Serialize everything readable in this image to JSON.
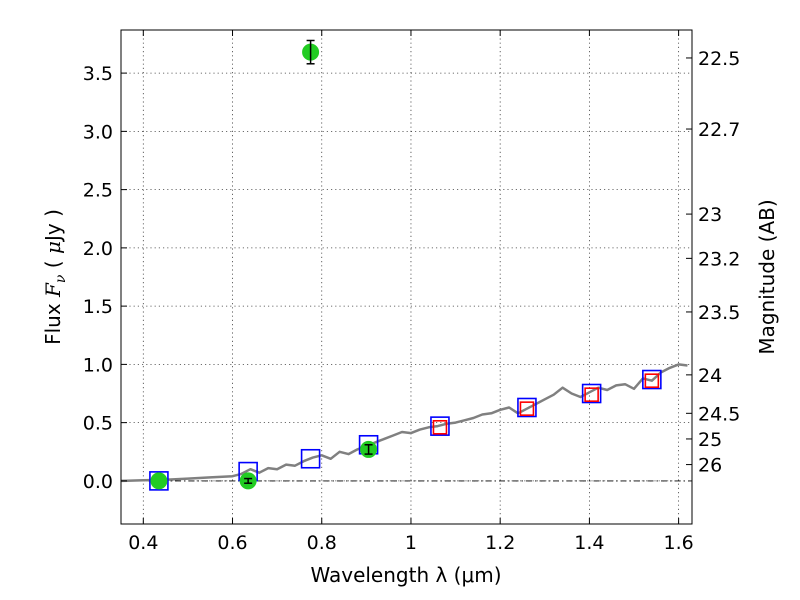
{
  "chart_data": {
    "type": "scatter",
    "title": "",
    "xlabel": "Wavelength  λ (μm)",
    "ylabel_parts": [
      "Flux  ",
      "F",
      "ν",
      "  ( ",
      "μ",
      "Jy )"
    ],
    "y2label": "Magnitude (AB)",
    "xlim": [
      0.35,
      1.63
    ],
    "ylim": [
      -0.37,
      3.87
    ],
    "grid": true,
    "x_ticks": [
      0.4,
      0.6,
      0.8,
      1.0,
      1.2,
      1.4,
      1.6
    ],
    "x_tick_labels": [
      "0.4",
      "0.6",
      "0.8",
      "1",
      "1.2",
      "1.4",
      "1.6"
    ],
    "y_ticks": [
      0.0,
      0.5,
      1.0,
      1.5,
      2.0,
      2.5,
      3.0,
      3.5
    ],
    "y_tick_labels": [
      "0.0",
      "0.5",
      "1.0",
      "1.5",
      "2.0",
      "2.5",
      "3.0",
      "3.5"
    ],
    "y2_ticks": [
      {
        "label": "22.5",
        "flux": 3.63
      },
      {
        "label": "22.7",
        "flux": 3.02
      },
      {
        "label": "23",
        "flux": 2.29
      },
      {
        "label": "23.2",
        "flux": 1.91
      },
      {
        "label": "23.5",
        "flux": 1.45
      },
      {
        "label": "24",
        "flux": 0.91
      },
      {
        "label": "24.5",
        "flux": 0.58
      },
      {
        "label": "25",
        "flux": 0.36
      },
      {
        "label": "26",
        "flux": 0.14
      }
    ],
    "model_spectrum": {
      "color": "#808080",
      "x": [
        0.35,
        0.4,
        0.45,
        0.5,
        0.55,
        0.6,
        0.62,
        0.64,
        0.66,
        0.68,
        0.7,
        0.72,
        0.74,
        0.76,
        0.78,
        0.8,
        0.82,
        0.84,
        0.86,
        0.88,
        0.9,
        0.92,
        0.94,
        0.96,
        0.98,
        1.0,
        1.02,
        1.04,
        1.06,
        1.08,
        1.1,
        1.12,
        1.14,
        1.16,
        1.18,
        1.2,
        1.22,
        1.24,
        1.26,
        1.28,
        1.3,
        1.32,
        1.34,
        1.36,
        1.38,
        1.4,
        1.42,
        1.44,
        1.46,
        1.48,
        1.5,
        1.52,
        1.54,
        1.56,
        1.58,
        1.6,
        1.62
      ],
      "y": [
        0.0,
        0.005,
        0.01,
        0.02,
        0.03,
        0.04,
        0.06,
        0.1,
        0.07,
        0.11,
        0.1,
        0.14,
        0.13,
        0.17,
        0.2,
        0.22,
        0.19,
        0.25,
        0.23,
        0.27,
        0.3,
        0.33,
        0.36,
        0.39,
        0.42,
        0.41,
        0.44,
        0.46,
        0.47,
        0.49,
        0.5,
        0.52,
        0.54,
        0.57,
        0.58,
        0.61,
        0.63,
        0.58,
        0.62,
        0.66,
        0.7,
        0.74,
        0.8,
        0.75,
        0.72,
        0.76,
        0.8,
        0.78,
        0.82,
        0.83,
        0.79,
        0.88,
        0.86,
        0.93,
        0.97,
        1.0,
        0.99
      ]
    },
    "series": [
      {
        "marker": "open-square",
        "color": "#0000ff",
        "x": [
          0.435,
          0.635,
          0.775,
          0.905,
          1.065,
          1.26,
          1.405,
          1.54
        ],
        "y": [
          0.0,
          0.08,
          0.19,
          0.31,
          0.47,
          0.63,
          0.75,
          0.87
        ]
      },
      {
        "marker": "open-square",
        "color": "#ff0000",
        "x": [
          1.065,
          1.26,
          1.405,
          1.54
        ],
        "y": [
          0.46,
          0.62,
          0.74,
          0.86
        ]
      },
      {
        "marker": "filled-circle",
        "color": "#22cc22",
        "x": [
          0.435,
          0.635,
          0.775,
          0.905
        ],
        "y": [
          0.0,
          0.0,
          3.68,
          0.27
        ],
        "yerr": [
          0.0,
          0.02,
          0.1,
          0.04
        ]
      }
    ]
  }
}
